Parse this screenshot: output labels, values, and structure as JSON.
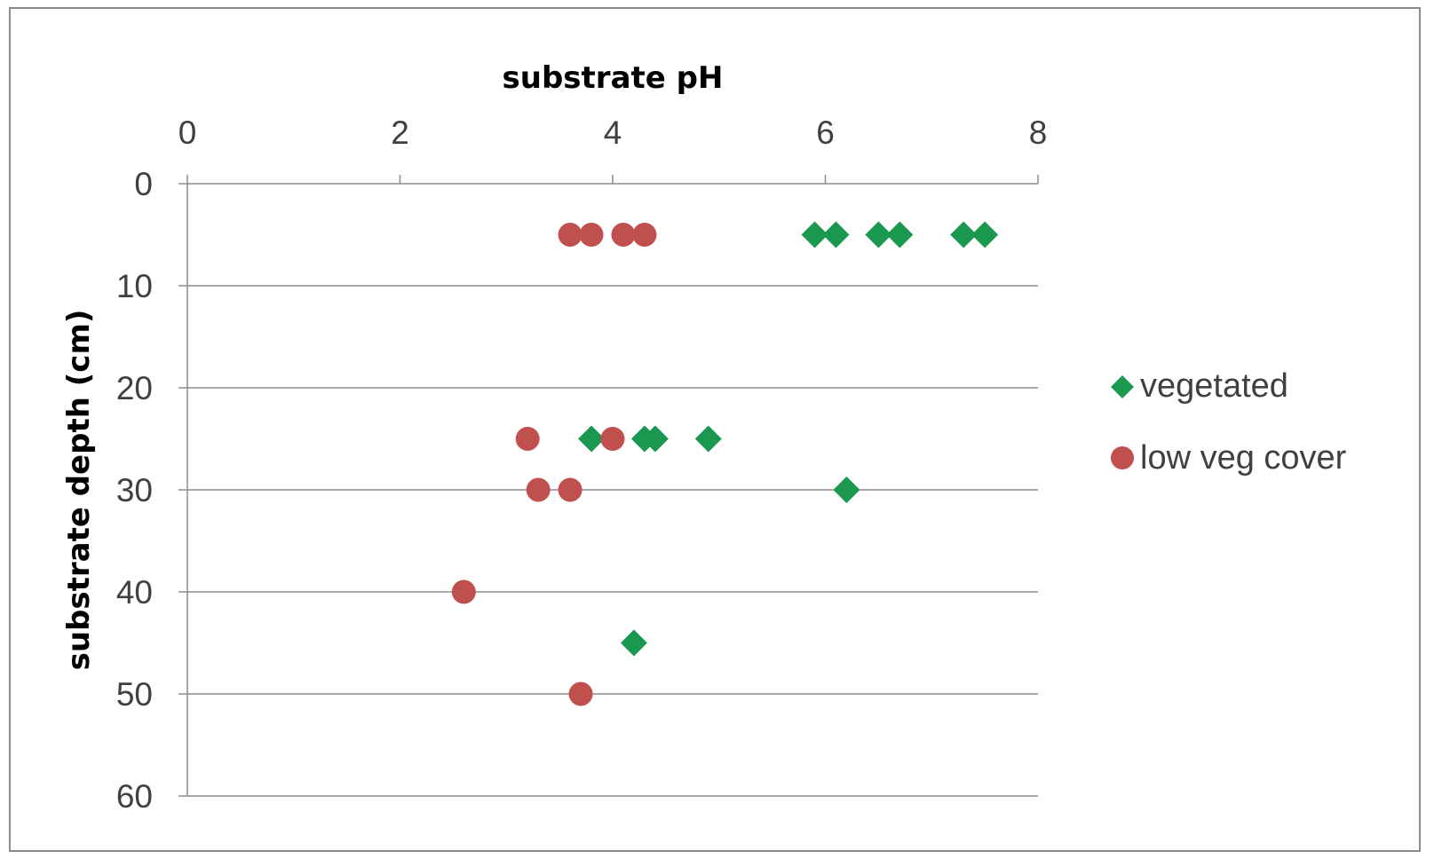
{
  "chart_data": {
    "type": "scatter",
    "title": "",
    "xlabel": "substrate pH",
    "ylabel": "substrate depth (cm)",
    "xlim": [
      0,
      8
    ],
    "ylim": [
      0,
      60
    ],
    "y_reversed": true,
    "x_axis_position": "top",
    "x_ticks": [
      "0",
      "2",
      "4",
      "6",
      "8"
    ],
    "y_ticks": [
      "0",
      "10",
      "20",
      "30",
      "40",
      "50",
      "60"
    ],
    "grid": "horizontal",
    "legend_position": "right",
    "series": [
      {
        "name": "vegetated",
        "marker": "diamond",
        "color": "#1a9850",
        "points": [
          {
            "x": 5.9,
            "y": 5
          },
          {
            "x": 6.1,
            "y": 5
          },
          {
            "x": 6.5,
            "y": 5
          },
          {
            "x": 6.7,
            "y": 5
          },
          {
            "x": 7.3,
            "y": 5
          },
          {
            "x": 7.5,
            "y": 5
          },
          {
            "x": 3.8,
            "y": 25
          },
          {
            "x": 4.3,
            "y": 25
          },
          {
            "x": 4.4,
            "y": 25
          },
          {
            "x": 4.9,
            "y": 25
          },
          {
            "x": 6.2,
            "y": 30
          },
          {
            "x": 4.2,
            "y": 45
          }
        ]
      },
      {
        "name": "low veg cover",
        "marker": "circle",
        "color": "#c0504d",
        "points": [
          {
            "x": 3.6,
            "y": 5
          },
          {
            "x": 3.8,
            "y": 5
          },
          {
            "x": 4.1,
            "y": 5
          },
          {
            "x": 4.3,
            "y": 5
          },
          {
            "x": 3.2,
            "y": 25
          },
          {
            "x": 4.0,
            "y": 25
          },
          {
            "x": 3.3,
            "y": 30
          },
          {
            "x": 3.6,
            "y": 30
          },
          {
            "x": 2.6,
            "y": 40
          },
          {
            "x": 3.7,
            "y": 50
          }
        ]
      }
    ]
  }
}
